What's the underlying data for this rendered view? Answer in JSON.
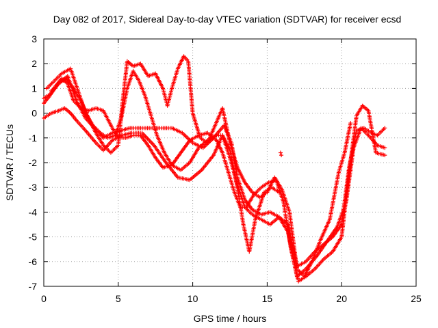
{
  "chart_data": {
    "type": "scatter",
    "title": "Day 082 of 2017, Sidereal Day-to-day VTEC variation (SDTVAR) for receiver ecsd",
    "xlabel": "GPS time / hours",
    "ylabel": "SDTVAR / TECUs",
    "xlim": [
      0,
      25
    ],
    "ylim": [
      -7,
      3
    ],
    "xticks": [
      0,
      5,
      10,
      15,
      20,
      25
    ],
    "yticks": [
      -7,
      -6,
      -5,
      -4,
      -3,
      -2,
      -1,
      0,
      1,
      2,
      3
    ],
    "grid": true,
    "marker": "+",
    "color": "#ff0000",
    "series": [
      {
        "x": [
          0.0,
          0.5,
          1.0,
          1.4,
          1.8,
          2.2,
          2.8,
          3.5,
          4.0,
          4.6,
          5.2,
          5.9,
          6.6,
          7.4,
          8.2,
          9.0,
          9.8,
          10.6,
          11.4,
          12.0,
          12.5,
          13.0,
          13.4,
          13.8,
          14.2,
          14.8,
          15.3,
          15.8
        ],
        "y": [
          -0.2,
          0.0,
          0.1,
          0.2,
          0.0,
          -0.3,
          -0.7,
          -1.2,
          -1.5,
          -1.1,
          -0.9,
          -0.8,
          -0.8,
          -1.3,
          -2.0,
          -2.6,
          -2.7,
          -2.3,
          -1.7,
          -0.9,
          -1.5,
          -3.0,
          -4.5,
          -5.6,
          -4.3,
          -3.2,
          -3.0,
          -3.2
        ]
      },
      {
        "x": [
          0.0,
          0.5,
          1.0,
          1.6,
          2.2,
          2.8,
          3.4,
          4.0,
          4.6,
          5.2,
          5.8,
          6.5,
          7.2,
          7.9,
          8.6,
          9.3,
          10.0,
          10.7,
          11.4,
          12.1,
          12.6,
          13.0,
          13.5,
          14.0,
          14.6,
          15.2,
          15.8,
          16.4,
          17.0,
          17.6,
          18.2,
          18.8,
          19.4,
          20.0,
          20.5,
          21.0,
          21.5,
          22.0,
          22.4,
          22.9
        ],
        "y": [
          0.6,
          0.8,
          1.2,
          1.5,
          0.5,
          -0.2,
          -0.6,
          -1.0,
          -0.8,
          -0.7,
          -0.6,
          -0.6,
          -0.6,
          -0.6,
          -0.6,
          -0.8,
          -1.2,
          -1.4,
          -1.0,
          -0.5,
          -1.2,
          -2.6,
          -3.5,
          -3.9,
          -4.1,
          -4.0,
          -4.2,
          -4.5,
          -6.2,
          -6.0,
          -5.6,
          -5.3,
          -5.0,
          -4.5,
          -2.2,
          -0.7,
          -0.6,
          -0.8,
          -0.9,
          -0.6
        ]
      },
      {
        "x": [
          0.2,
          0.7,
          1.2,
          1.8,
          2.3,
          2.8,
          3.3,
          3.8,
          4.3,
          4.8,
          5.2,
          5.6,
          6.0,
          6.4,
          6.8,
          7.2,
          7.6,
          8.1,
          8.6,
          9.2,
          9.8,
          10.4,
          11.0,
          11.6,
          12.0,
          12.5,
          13.0,
          13.5,
          14.0,
          14.6,
          15.2,
          15.8,
          16.4,
          17.0,
          17.6,
          18.3,
          19.0,
          19.7,
          20.3,
          20.8,
          21.3,
          21.8,
          22.4,
          22.9
        ],
        "y": [
          1.0,
          1.3,
          1.6,
          1.8,
          0.9,
          0.0,
          -0.5,
          -0.8,
          -1.0,
          -0.9,
          -0.2,
          1.0,
          1.7,
          1.3,
          0.7,
          -0.1,
          -0.9,
          -1.6,
          -2.1,
          -2.3,
          -2.0,
          -1.4,
          -1.1,
          -0.9,
          -0.9,
          -1.8,
          -2.9,
          -3.8,
          -4.1,
          -4.3,
          -4.5,
          -4.2,
          -4.8,
          -6.6,
          -6.3,
          -5.8,
          -5.2,
          -4.6,
          -3.6,
          -1.4,
          -0.6,
          -0.9,
          -1.3,
          -1.4
        ]
      },
      {
        "x": [
          0.0,
          0.4,
          0.8,
          1.2,
          1.6,
          2.0,
          2.5,
          3.0,
          3.5,
          4.0,
          4.6,
          5.0,
          5.5,
          6.0,
          6.5,
          7.0,
          7.5,
          8.0,
          8.6,
          9.2,
          9.8,
          10.4,
          11.0,
          11.6,
          12.0,
          12.4,
          12.8,
          13.2,
          13.6,
          14.1,
          14.6,
          15.1,
          15.6,
          16.1,
          16.6,
          17.1,
          17.6,
          18.2,
          18.8,
          19.4,
          20.0,
          20.5,
          21.0,
          21.4,
          21.8,
          22.3,
          22.9
        ],
        "y": [
          0.4,
          0.7,
          1.1,
          1.4,
          1.2,
          0.5,
          0.2,
          0.1,
          0.2,
          0.1,
          -0.6,
          -1.0,
          -1.0,
          -0.9,
          -0.9,
          -1.3,
          -1.8,
          -2.2,
          -2.1,
          -1.6,
          -1.1,
          -0.9,
          -0.8,
          -1.1,
          -1.6,
          -2.4,
          -3.2,
          -3.8,
          -3.8,
          -3.3,
          -3.0,
          -2.8,
          -2.7,
          -3.6,
          -5.5,
          -6.8,
          -6.6,
          -6.3,
          -5.9,
          -5.6,
          -5.0,
          -2.4,
          -0.1,
          0.3,
          0.1,
          -1.6,
          -1.7
        ]
      },
      {
        "x": [
          0.5,
          1.0,
          1.5,
          2.0,
          2.5,
          3.0,
          3.5,
          4.0,
          4.5,
          5.0,
          5.3,
          5.6,
          6.0,
          6.5,
          7.0,
          7.5,
          8.0,
          8.3,
          8.6,
          9.0,
          9.4,
          9.7,
          10.0,
          10.5,
          11.0,
          11.5,
          12.0,
          12.5,
          13.0,
          13.5,
          14.0,
          14.5,
          15.0,
          15.5,
          16.0,
          16.5,
          17.0,
          17.5,
          18.0,
          18.6,
          19.2,
          19.8,
          20.2,
          20.6
        ],
        "y": [
          0.9,
          1.2,
          1.4,
          1.0,
          0.5,
          -0.2,
          -0.8,
          -1.3,
          -1.6,
          -1.3,
          0.5,
          2.1,
          1.9,
          2.0,
          1.5,
          1.6,
          1.0,
          0.3,
          1.0,
          1.8,
          2.3,
          2.1,
          0.0,
          -1.0,
          -1.2,
          -0.5,
          0.2,
          -1.2,
          -2.2,
          -2.8,
          -3.2,
          -3.4,
          -3.2,
          -2.6,
          -3.1,
          -4.0,
          -6.3,
          -6.6,
          -6.0,
          -5.1,
          -4.3,
          -2.4,
          -1.6,
          -0.4
        ]
      },
      {
        "x": [
          15.9,
          15.95
        ],
        "y": [
          -1.6,
          -1.7
        ]
      }
    ]
  }
}
